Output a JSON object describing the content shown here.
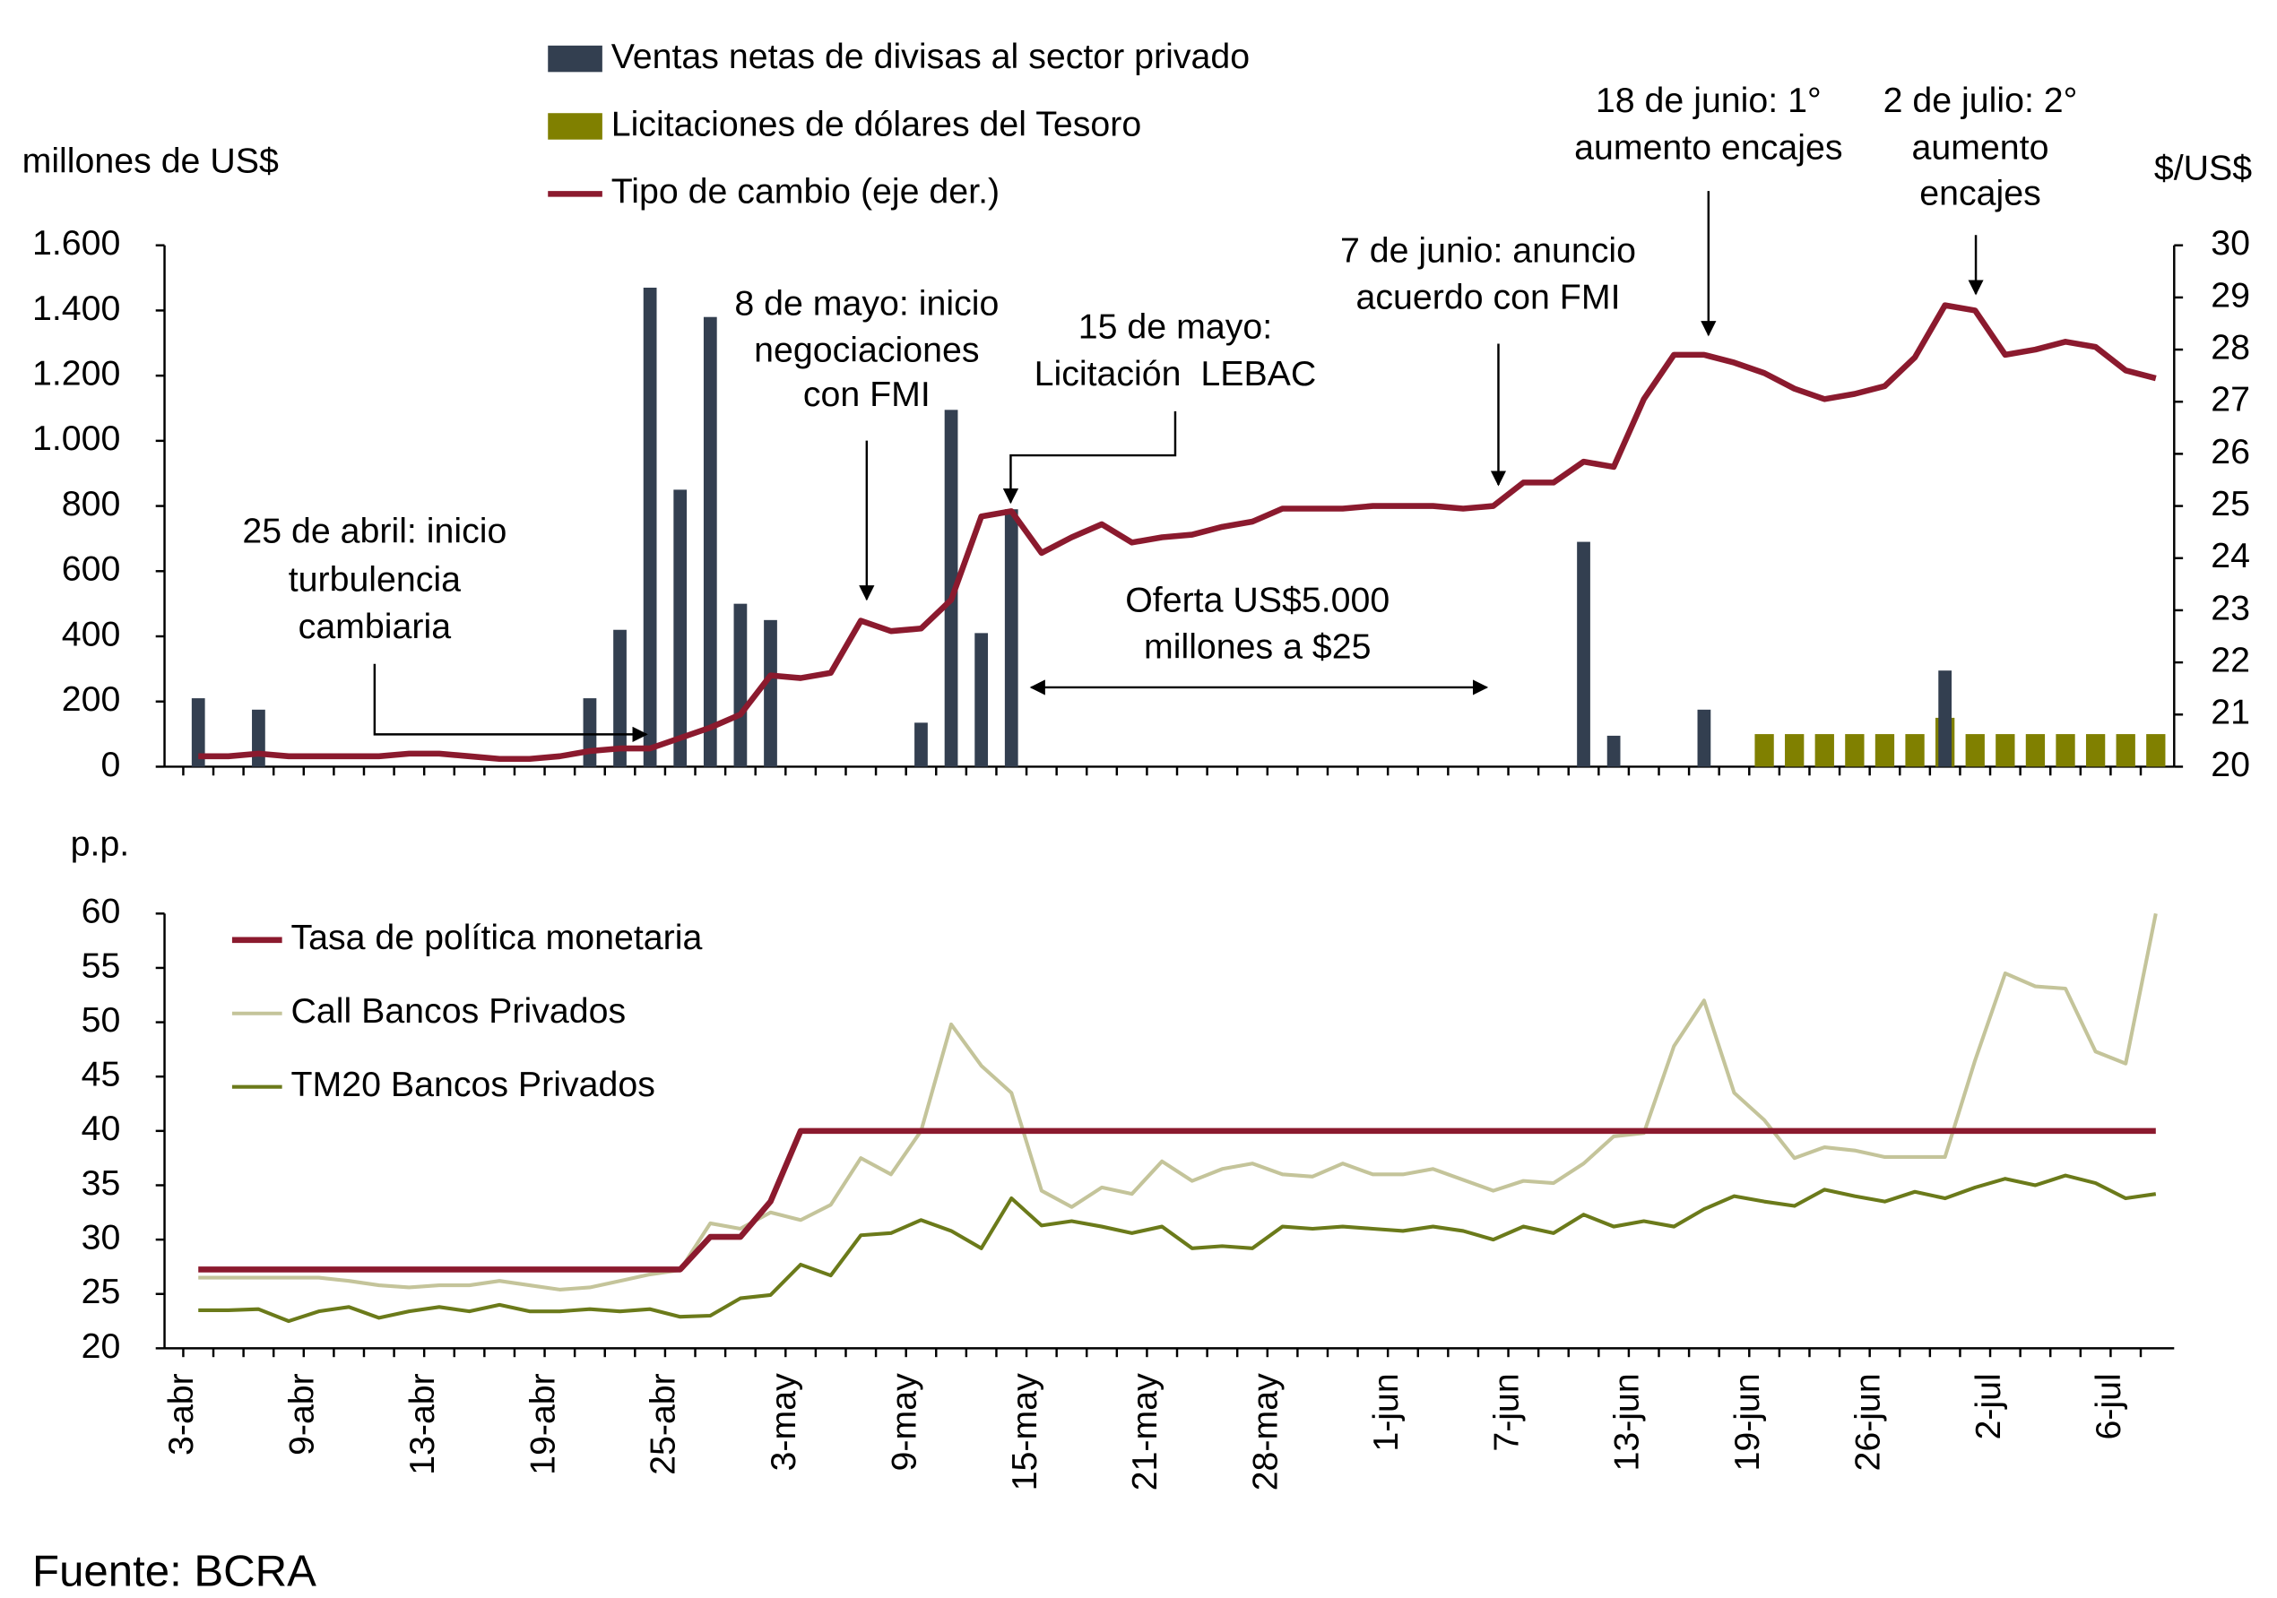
{
  "source": "Fuente: BCRA",
  "chart_data": [
    {
      "type": "bar",
      "ylabel": "millones de US$",
      "y2label": "$/US$",
      "ylim": [
        0,
        1600
      ],
      "yticks": [
        0,
        200,
        400,
        600,
        800,
        {
          "value": 1000,
          "label": "1.000"
        },
        {
          "value": 1200,
          "label": "1.200"
        },
        {
          "value": 1400,
          "label": "1.400"
        },
        {
          "value": 1600,
          "label": "1.600"
        }
      ],
      "y2lim": [
        20,
        30
      ],
      "y2ticks": [
        20,
        21,
        22,
        23,
        24,
        25,
        26,
        27,
        28,
        29,
        30
      ],
      "series": [
        {
          "name": "Ventas netas de divisas al sector privado",
          "type": "bar",
          "color": "#333f50",
          "values": [
            210,
            null,
            175,
            null,
            null,
            null,
            null,
            null,
            null,
            null,
            null,
            null,
            null,
            210,
            420,
            1470,
            850,
            1380,
            500,
            450,
            null,
            null,
            null,
            null,
            135,
            1095,
            410,
            790,
            null,
            null,
            null,
            null,
            null,
            null,
            null,
            null,
            null,
            null,
            null,
            null,
            null,
            null,
            null,
            null,
            null,
            null,
            690,
            95,
            null,
            null,
            175,
            null,
            null,
            null,
            null,
            null,
            null,
            null,
            295,
            null,
            null,
            null,
            null,
            null,
            null,
            null
          ]
        },
        {
          "name": "Licitaciones de dólares del Tesoro",
          "type": "bar",
          "color": "#808000",
          "values": [
            null,
            null,
            null,
            null,
            null,
            null,
            null,
            null,
            null,
            null,
            null,
            null,
            null,
            null,
            null,
            null,
            null,
            null,
            null,
            null,
            null,
            null,
            null,
            null,
            null,
            null,
            null,
            null,
            null,
            null,
            null,
            null,
            null,
            null,
            null,
            null,
            null,
            null,
            null,
            null,
            null,
            null,
            null,
            null,
            null,
            null,
            null,
            null,
            null,
            null,
            null,
            null,
            100,
            100,
            100,
            100,
            100,
            100,
            150,
            100,
            100,
            100,
            100,
            100,
            100,
            100
          ]
        },
        {
          "name": "Tipo de cambio (eje der.)",
          "type": "line",
          "axis": "y2",
          "color": "#8b1a2e",
          "values": [
            20.2,
            20.2,
            20.25,
            20.2,
            20.2,
            20.2,
            20.2,
            20.25,
            20.25,
            20.2,
            20.15,
            20.15,
            20.2,
            20.3,
            20.35,
            20.35,
            20.55,
            20.75,
            21.0,
            21.75,
            21.7,
            21.8,
            22.8,
            22.6,
            22.65,
            23.2,
            24.8,
            24.9,
            24.1,
            24.4,
            24.65,
            24.3,
            24.4,
            24.45,
            24.6,
            24.7,
            24.95,
            24.95,
            24.95,
            25.0,
            25.0,
            25.0,
            24.95,
            25.0,
            25.45,
            25.45,
            25.85,
            25.75,
            27.05,
            27.9,
            27.9,
            27.75,
            27.55,
            27.25,
            27.05,
            27.15,
            27.3,
            27.85,
            28.85,
            28.75,
            27.9,
            28.0,
            28.15,
            28.05,
            27.6,
            27.45
          ]
        }
      ],
      "annotations": [
        {
          "lines": [
            "25 de abril: inicio",
            "turbulencia",
            "cambiaria"
          ]
        },
        {
          "lines": [
            "8 de mayo: inicio",
            "negociaciones",
            "con FMI"
          ]
        },
        {
          "lines": [
            "15 de mayo:",
            "Licitación  LEBAC"
          ]
        },
        {
          "lines": [
            "Oferta US$5.000",
            "millones a $25"
          ]
        },
        {
          "lines": [
            "7 de junio: anuncio",
            "acuerdo con FMI"
          ]
        },
        {
          "lines": [
            "18 de junio: 1°",
            "aumento encajes"
          ]
        },
        {
          "lines": [
            "2 de julio: 2°",
            "aumento",
            "encajes"
          ]
        }
      ]
    },
    {
      "type": "line",
      "ylabel": "p.p.",
      "ylim": [
        20,
        60
      ],
      "yticks": [
        20,
        25,
        30,
        35,
        40,
        45,
        50,
        55,
        60
      ],
      "categories": [
        "3-abr",
        null,
        null,
        null,
        "9-abr",
        null,
        null,
        null,
        "13-abr",
        null,
        null,
        null,
        "19-abr",
        null,
        null,
        null,
        "25-abr",
        null,
        null,
        null,
        "3-may",
        null,
        null,
        null,
        "9-may",
        null,
        null,
        null,
        "15-may",
        null,
        null,
        null,
        "21-may",
        null,
        null,
        null,
        "28-may",
        null,
        null,
        null,
        "1-jun",
        null,
        null,
        null,
        "7-jun",
        null,
        null,
        null,
        "13-jun",
        null,
        null,
        null,
        "19-jun",
        null,
        null,
        null,
        "26-jun",
        null,
        null,
        null,
        "2-jul",
        null,
        null,
        null,
        "6-jul",
        null
      ],
      "series": [
        {
          "name": "Tasa de política monetaria",
          "color": "#8b1a2e",
          "width": 4,
          "values": [
            27.25,
            27.25,
            27.25,
            27.25,
            27.25,
            27.25,
            27.25,
            27.25,
            27.25,
            27.25,
            27.25,
            27.25,
            27.25,
            27.25,
            27.25,
            27.25,
            27.25,
            30.25,
            30.25,
            33.5,
            40,
            40,
            40,
            40,
            40,
            40,
            40,
            40,
            40,
            40,
            40,
            40,
            40,
            40,
            40,
            40,
            40,
            40,
            40,
            40,
            40,
            40,
            40,
            40,
            40,
            40,
            40,
            40,
            40,
            40,
            40,
            40,
            40,
            40,
            40,
            40,
            40,
            40,
            40,
            40,
            40,
            40,
            40,
            40,
            40,
            40
          ]
        },
        {
          "name": "Call Bancos Privados",
          "color": "#c4c49a",
          "width": 2.5,
          "values": [
            26.5,
            26.5,
            26.5,
            26.5,
            26.5,
            26.2,
            25.8,
            25.6,
            25.8,
            25.8,
            26.2,
            25.8,
            25.4,
            25.6,
            26.2,
            26.8,
            27.2,
            31.5,
            31.0,
            32.5,
            31.8,
            33.2,
            37.5,
            36.0,
            40.0,
            49.8,
            46.0,
            43.5,
            34.5,
            33.0,
            34.8,
            34.2,
            37.2,
            35.4,
            36.5,
            37.0,
            36.0,
            35.8,
            37.0,
            36.0,
            36.0,
            36.5,
            35.5,
            34.5,
            35.4,
            35.2,
            37.0,
            39.5,
            39.8,
            47.8,
            52.0,
            43.5,
            41.0,
            37.5,
            38.5,
            38.2,
            37.6,
            37.6,
            37.6,
            46.5,
            54.5,
            53.3,
            53.1,
            47.3,
            46.2,
            60.0
          ]
        },
        {
          "name": "TM20 Bancos Privados",
          "color": "#6b7a1a",
          "width": 2.5,
          "values": [
            23.5,
            23.5,
            23.6,
            22.5,
            23.4,
            23.8,
            22.8,
            23.4,
            23.8,
            23.4,
            24.0,
            23.4,
            23.4,
            23.6,
            23.4,
            23.6,
            22.9,
            23.0,
            24.6,
            24.9,
            27.7,
            26.7,
            30.4,
            30.6,
            31.8,
            30.8,
            29.2,
            33.8,
            31.3,
            31.7,
            31.2,
            30.6,
            31.2,
            29.2,
            29.4,
            29.2,
            31.2,
            31.0,
            31.2,
            31.0,
            30.8,
            31.2,
            30.8,
            30.0,
            31.2,
            30.6,
            32.3,
            31.2,
            31.7,
            31.2,
            32.8,
            34.0,
            33.5,
            33.1,
            34.6,
            34.0,
            33.5,
            34.4,
            33.8,
            34.8,
            35.6,
            35.0,
            35.9,
            35.2,
            33.8,
            34.2
          ]
        }
      ]
    }
  ]
}
